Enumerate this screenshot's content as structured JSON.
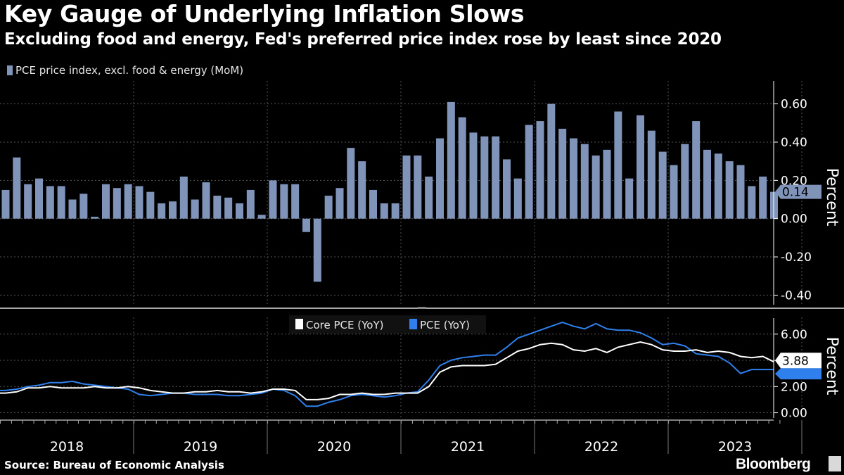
{
  "header": {
    "title": "Key Gauge of Underlying Inflation Slows",
    "subtitle": "Excluding food and energy, Fed's preferred price index rose by least since 2020"
  },
  "footer": {
    "source": "Source: Bureau of Economic Analysis",
    "brand": "Bloomberg"
  },
  "colors": {
    "background": "#000000",
    "bar": "#7f94b8",
    "core_line": "#ffffff",
    "pce_line": "#2f80ed",
    "grid": "#555555",
    "axis": "#ffffff"
  },
  "icons": {
    "brand_icon": "bloomberg-terminal-icon"
  },
  "chart_data": [
    {
      "type": "bar",
      "legend": [
        "PCE price index, excl. food & energy (MoM)"
      ],
      "ylabel": "Percent",
      "ylim": [
        -0.45,
        0.72
      ],
      "yticks": [
        0.6,
        0.4,
        0.2,
        0.0,
        -0.2,
        -0.4
      ],
      "ytick_labels": [
        "0.60",
        "0.40",
        "0.20",
        "0.00",
        "-0.20",
        "-0.40"
      ],
      "last_value_label": "0.14",
      "grid": true,
      "legend_position": "top-left",
      "series": [
        {
          "name": "PCE price index, excl. food & energy (MoM)",
          "start": "2018-01",
          "values": [
            0.15,
            0.32,
            0.18,
            0.21,
            0.17,
            0.17,
            0.1,
            0.13,
            0.01,
            0.18,
            0.16,
            0.18,
            0.17,
            0.14,
            0.08,
            0.09,
            0.22,
            0.1,
            0.19,
            0.12,
            0.11,
            0.08,
            0.15,
            0.02,
            0.2,
            0.18,
            0.18,
            -0.07,
            -0.33,
            0.12,
            0.16,
            0.37,
            0.3,
            0.15,
            0.08,
            0.08,
            0.33,
            0.33,
            0.22,
            0.42,
            0.61,
            0.53,
            0.45,
            0.43,
            0.43,
            0.31,
            0.21,
            0.49,
            0.51,
            0.6,
            0.47,
            0.42,
            0.39,
            0.33,
            0.36,
            0.56,
            0.21,
            0.54,
            0.46,
            0.35,
            0.28,
            0.39,
            0.51,
            0.36,
            0.34,
            0.3,
            0.28,
            0.17,
            0.22,
            0.14
          ]
        }
      ]
    },
    {
      "type": "line",
      "legend": [
        "Core PCE (YoY)",
        "PCE (YoY)"
      ],
      "legend_position": "top-center",
      "ylabel": "Percent",
      "ylim": [
        -0.4,
        7.6
      ],
      "yticks": [
        6.0,
        4.0,
        2.0,
        0.0
      ],
      "ytick_labels": [
        "6.00",
        "4.00",
        "2.00",
        "0.00"
      ],
      "last_value_label": "3.88",
      "grid": true,
      "series": [
        {
          "name": "Core PCE (YoY)",
          "start": "2018-01",
          "values": [
            1.5,
            1.6,
            1.9,
            1.9,
            2.0,
            1.9,
            1.9,
            1.9,
            2.0,
            1.9,
            1.9,
            2.0,
            1.9,
            1.7,
            1.6,
            1.5,
            1.5,
            1.6,
            1.6,
            1.7,
            1.6,
            1.6,
            1.5,
            1.6,
            1.8,
            1.8,
            1.7,
            1.0,
            1.0,
            1.1,
            1.4,
            1.4,
            1.5,
            1.4,
            1.4,
            1.5,
            1.5,
            1.5,
            2.0,
            3.1,
            3.5,
            3.6,
            3.6,
            3.6,
            3.7,
            4.2,
            4.7,
            4.9,
            5.2,
            5.3,
            5.2,
            4.8,
            4.7,
            4.9,
            4.6,
            5.0,
            5.2,
            5.4,
            5.2,
            4.8,
            4.7,
            4.7,
            4.8,
            4.6,
            4.7,
            4.6,
            4.3,
            4.2,
            4.3,
            3.88
          ]
        },
        {
          "name": "PCE (YoY)",
          "start": "2018-01",
          "values": [
            1.7,
            1.8,
            2.0,
            2.1,
            2.3,
            2.3,
            2.4,
            2.2,
            2.1,
            2.0,
            1.9,
            1.8,
            1.4,
            1.3,
            1.4,
            1.5,
            1.5,
            1.4,
            1.4,
            1.4,
            1.3,
            1.3,
            1.4,
            1.5,
            1.8,
            1.7,
            1.3,
            0.5,
            0.5,
            0.8,
            1.0,
            1.3,
            1.4,
            1.3,
            1.2,
            1.3,
            1.5,
            1.6,
            2.5,
            3.6,
            4.0,
            4.2,
            4.3,
            4.4,
            4.4,
            5.0,
            5.7,
            6.0,
            6.3,
            6.6,
            6.9,
            6.6,
            6.4,
            6.8,
            6.4,
            6.3,
            6.3,
            6.1,
            5.7,
            5.2,
            5.3,
            5.1,
            4.5,
            4.4,
            4.3,
            3.8,
            3.0,
            3.3,
            3.3,
            3.3
          ]
        }
      ]
    },
    {
      "type": "axis",
      "categories": [
        "2018",
        "2019",
        "2020",
        "2021",
        "2022",
        "2023"
      ]
    }
  ]
}
